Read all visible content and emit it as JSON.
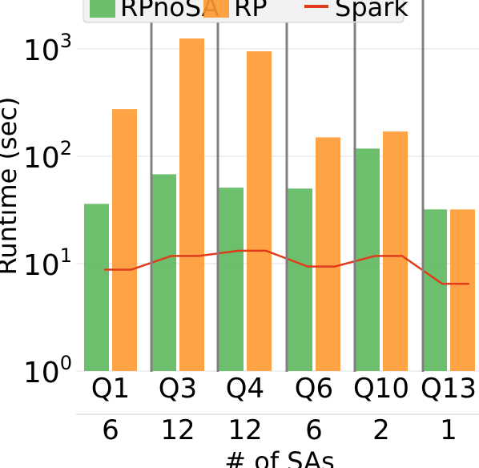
{
  "colors": {
    "rpnosa": "#5cb85c",
    "rp": "#ff9933",
    "spark": "#e03c1c",
    "divider": "#808080",
    "grid": "#e6e6e6",
    "legend_bg": "#f2f2f2"
  },
  "chart_data": {
    "type": "bar",
    "title": "",
    "xlabel": "# of SAs",
    "ylabel": "Runtime (sec)",
    "yscale": "log",
    "ylim": [
      1,
      2500
    ],
    "yticks": [
      {
        "value": 1,
        "base": "10",
        "exp": "0"
      },
      {
        "value": 10,
        "base": "10",
        "exp": "1"
      },
      {
        "value": 100,
        "base": "10",
        "exp": "2"
      },
      {
        "value": 1000,
        "base": "10",
        "exp": "3"
      }
    ],
    "grid": true,
    "legend_position": "top",
    "categories": [
      "Q1",
      "Q3",
      "Q4",
      "Q6",
      "Q10",
      "Q13"
    ],
    "sa_counts": [
      "6",
      "12",
      "12",
      "6",
      "2",
      "1"
    ],
    "series": [
      {
        "name": "RPnoSA",
        "kind": "bar",
        "color_key": "rpnosa",
        "values": [
          36,
          68,
          51,
          50,
          118,
          32
        ]
      },
      {
        "name": "RP",
        "kind": "bar",
        "color_key": "rp",
        "values": [
          275,
          1250,
          950,
          150,
          170,
          32
        ]
      },
      {
        "name": "Spark",
        "kind": "line",
        "color_key": "spark",
        "values": [
          8.8,
          11.8,
          13.2,
          9.4,
          11.8,
          6.5
        ]
      }
    ]
  }
}
